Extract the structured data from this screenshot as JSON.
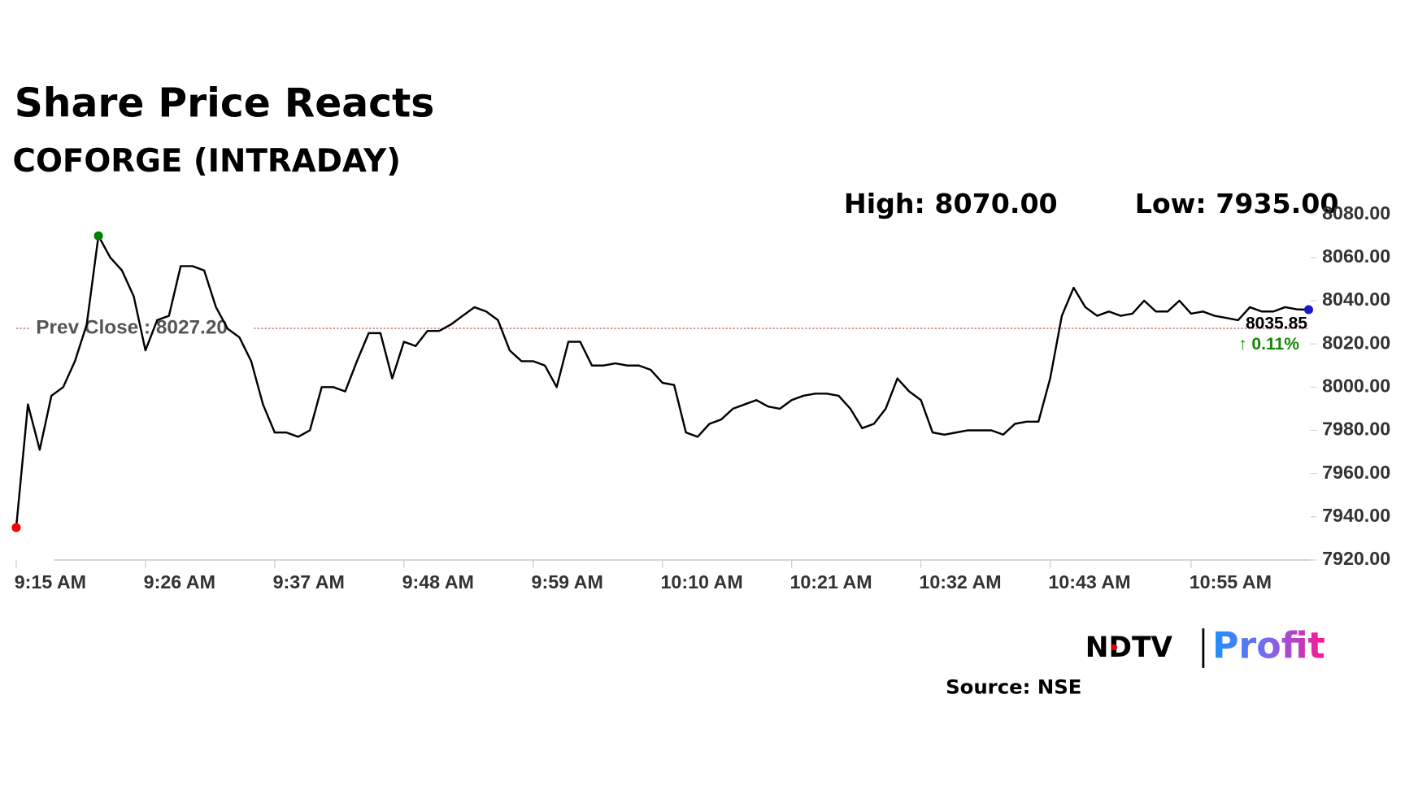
{
  "chart_data": {
    "type": "line",
    "title": "Share Price Reacts",
    "subtitle": "COFORGE (INTRADAY)",
    "high_label": "High: 8070.00",
    "low_label": "Low: 7935.00",
    "prev_close": 8027.2,
    "prev_close_label": "Prev Close : 8027.20",
    "prev_close_color": "#b22222",
    "last_label": "8035.85",
    "change_label": "↑ 0.11%",
    "change_color": "#138808",
    "high_color": "#008000",
    "low_color": "#ff0000",
    "last_color": "#1a1acc",
    "logo": [
      "NDTV",
      "Profit"
    ],
    "source": "Source: NSE",
    "x": [
      "09:15",
      "09:16",
      "09:17",
      "09:18",
      "09:19",
      "09:20",
      "09:21",
      "09:22",
      "09:23",
      "09:24",
      "09:25",
      "09:26",
      "09:27",
      "09:28",
      "09:29",
      "09:30",
      "09:31",
      "09:32",
      "09:33",
      "09:34",
      "09:35",
      "09:36",
      "09:37",
      "09:38",
      "09:39",
      "09:40",
      "09:41",
      "09:42",
      "09:43",
      "09:44",
      "09:45",
      "09:46",
      "09:47",
      "09:48",
      "09:49",
      "09:50",
      "09:51",
      "09:52",
      "09:53",
      "09:54",
      "09:55",
      "09:56",
      "09:57",
      "09:58",
      "09:59",
      "10:00",
      "10:01",
      "10:02",
      "10:03",
      "10:04",
      "10:05",
      "10:06",
      "10:07",
      "10:08",
      "10:09",
      "10:10",
      "10:11",
      "10:12",
      "10:13",
      "10:14",
      "10:15",
      "10:16",
      "10:17",
      "10:18",
      "10:19",
      "10:20",
      "10:21",
      "10:22",
      "10:23",
      "10:24",
      "10:25",
      "10:26",
      "10:27",
      "10:28",
      "10:29",
      "10:30",
      "10:31",
      "10:32",
      "10:33",
      "10:34",
      "10:35",
      "10:36",
      "10:37",
      "10:38",
      "10:39",
      "10:40",
      "10:41",
      "10:42",
      "10:43",
      "10:44",
      "10:45",
      "10:46",
      "10:47",
      "10:48",
      "10:49",
      "10:50",
      "10:51",
      "10:52",
      "10:53",
      "10:54",
      "10:55",
      "10:56",
      "10:57",
      "10:58",
      "10:59",
      "11:00",
      "11:01",
      "11:02",
      "11:03",
      "11:04",
      "11:05"
    ],
    "series": [
      {
        "name": "COFORGE",
        "color": "#000000",
        "values": [
          7935,
          7992,
          7971,
          7996,
          8000,
          8012,
          8029,
          8070,
          8060,
          8054,
          8042,
          8017,
          8031,
          8033,
          8056,
          8056,
          8054,
          8037,
          8027,
          8023,
          8012,
          7992,
          7979,
          7979,
          7977,
          7980,
          8000,
          8000,
          7998,
          8012,
          8025,
          8025,
          8004,
          8021,
          8019,
          8026,
          8026,
          8029,
          8033,
          8037,
          8035,
          8031,
          8017,
          8012,
          8012,
          8010,
          8000,
          8021,
          8021,
          8010,
          8010,
          8011,
          8010,
          8010,
          8008,
          8002,
          8001,
          7979,
          7977,
          7983,
          7985,
          7990,
          7992,
          7994,
          7991,
          7990,
          7994,
          7996,
          7997,
          7997,
          7996,
          7990,
          7981,
          7983,
          7990,
          8004,
          7998,
          7994,
          7979,
          7978,
          7979,
          7980,
          7980,
          7980,
          7978,
          7983,
          7984,
          7984,
          8004,
          8033,
          8046,
          8037,
          8033,
          8035,
          8033,
          8034,
          8040,
          8035,
          8035,
          8040,
          8034,
          8035,
          8033,
          8032,
          8031,
          8037,
          8035,
          8035,
          8037,
          8036,
          8035.85
        ]
      }
    ],
    "xlim": [
      "09:15",
      "11:05"
    ],
    "xticks": [
      {
        "value": "09:15",
        "label": "9:15 AM"
      },
      {
        "value": "09:26",
        "label": "9:26 AM"
      },
      {
        "value": "09:37",
        "label": "9:37 AM"
      },
      {
        "value": "09:48",
        "label": "9:48 AM"
      },
      {
        "value": "09:59",
        "label": "9:59 AM"
      },
      {
        "value": "10:10",
        "label": "10:10 AM"
      },
      {
        "value": "10:21",
        "label": "10:21 AM"
      },
      {
        "value": "10:32",
        "label": "10:32 AM"
      },
      {
        "value": "10:43",
        "label": "10:43 AM"
      },
      {
        "value": "10:55",
        "label": "10:55 AM"
      }
    ],
    "ylim": [
      7920,
      8080
    ],
    "yticks": [
      {
        "value": 7920,
        "label": "7920.00"
      },
      {
        "value": 7940,
        "label": "7940.00"
      },
      {
        "value": 7960,
        "label": "7960.00"
      },
      {
        "value": 7980,
        "label": "7980.00"
      },
      {
        "value": 8000,
        "label": "8000.00"
      },
      {
        "value": 8020,
        "label": "8020.00"
      },
      {
        "value": 8040,
        "label": "8040.00"
      },
      {
        "value": 8060,
        "label": "8060.00"
      },
      {
        "value": 8080,
        "label": "8080.00"
      }
    ],
    "grid": false
  }
}
